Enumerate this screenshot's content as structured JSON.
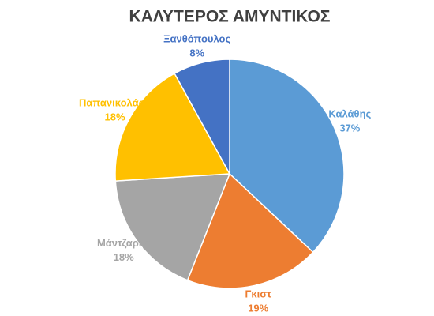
{
  "chart_data": {
    "type": "pie",
    "title": "ΚΑΛΥΤΕΡΟΣ  ΑΜΥΝΤΙΚΟΣ",
    "categories": [
      "Καλάθης",
      "Γκιστ",
      "Μάντζαρης",
      "Παπανικολάου",
      "Ξανθόπουλος"
    ],
    "values": [
      37,
      19,
      18,
      18,
      8
    ],
    "value_labels": [
      "37%",
      "19%",
      "18%",
      "18%",
      "8%"
    ],
    "colors": [
      "#5b9bd5",
      "#ed7d31",
      "#a5a5a5",
      "#ffc000",
      "#4472c4"
    ]
  }
}
